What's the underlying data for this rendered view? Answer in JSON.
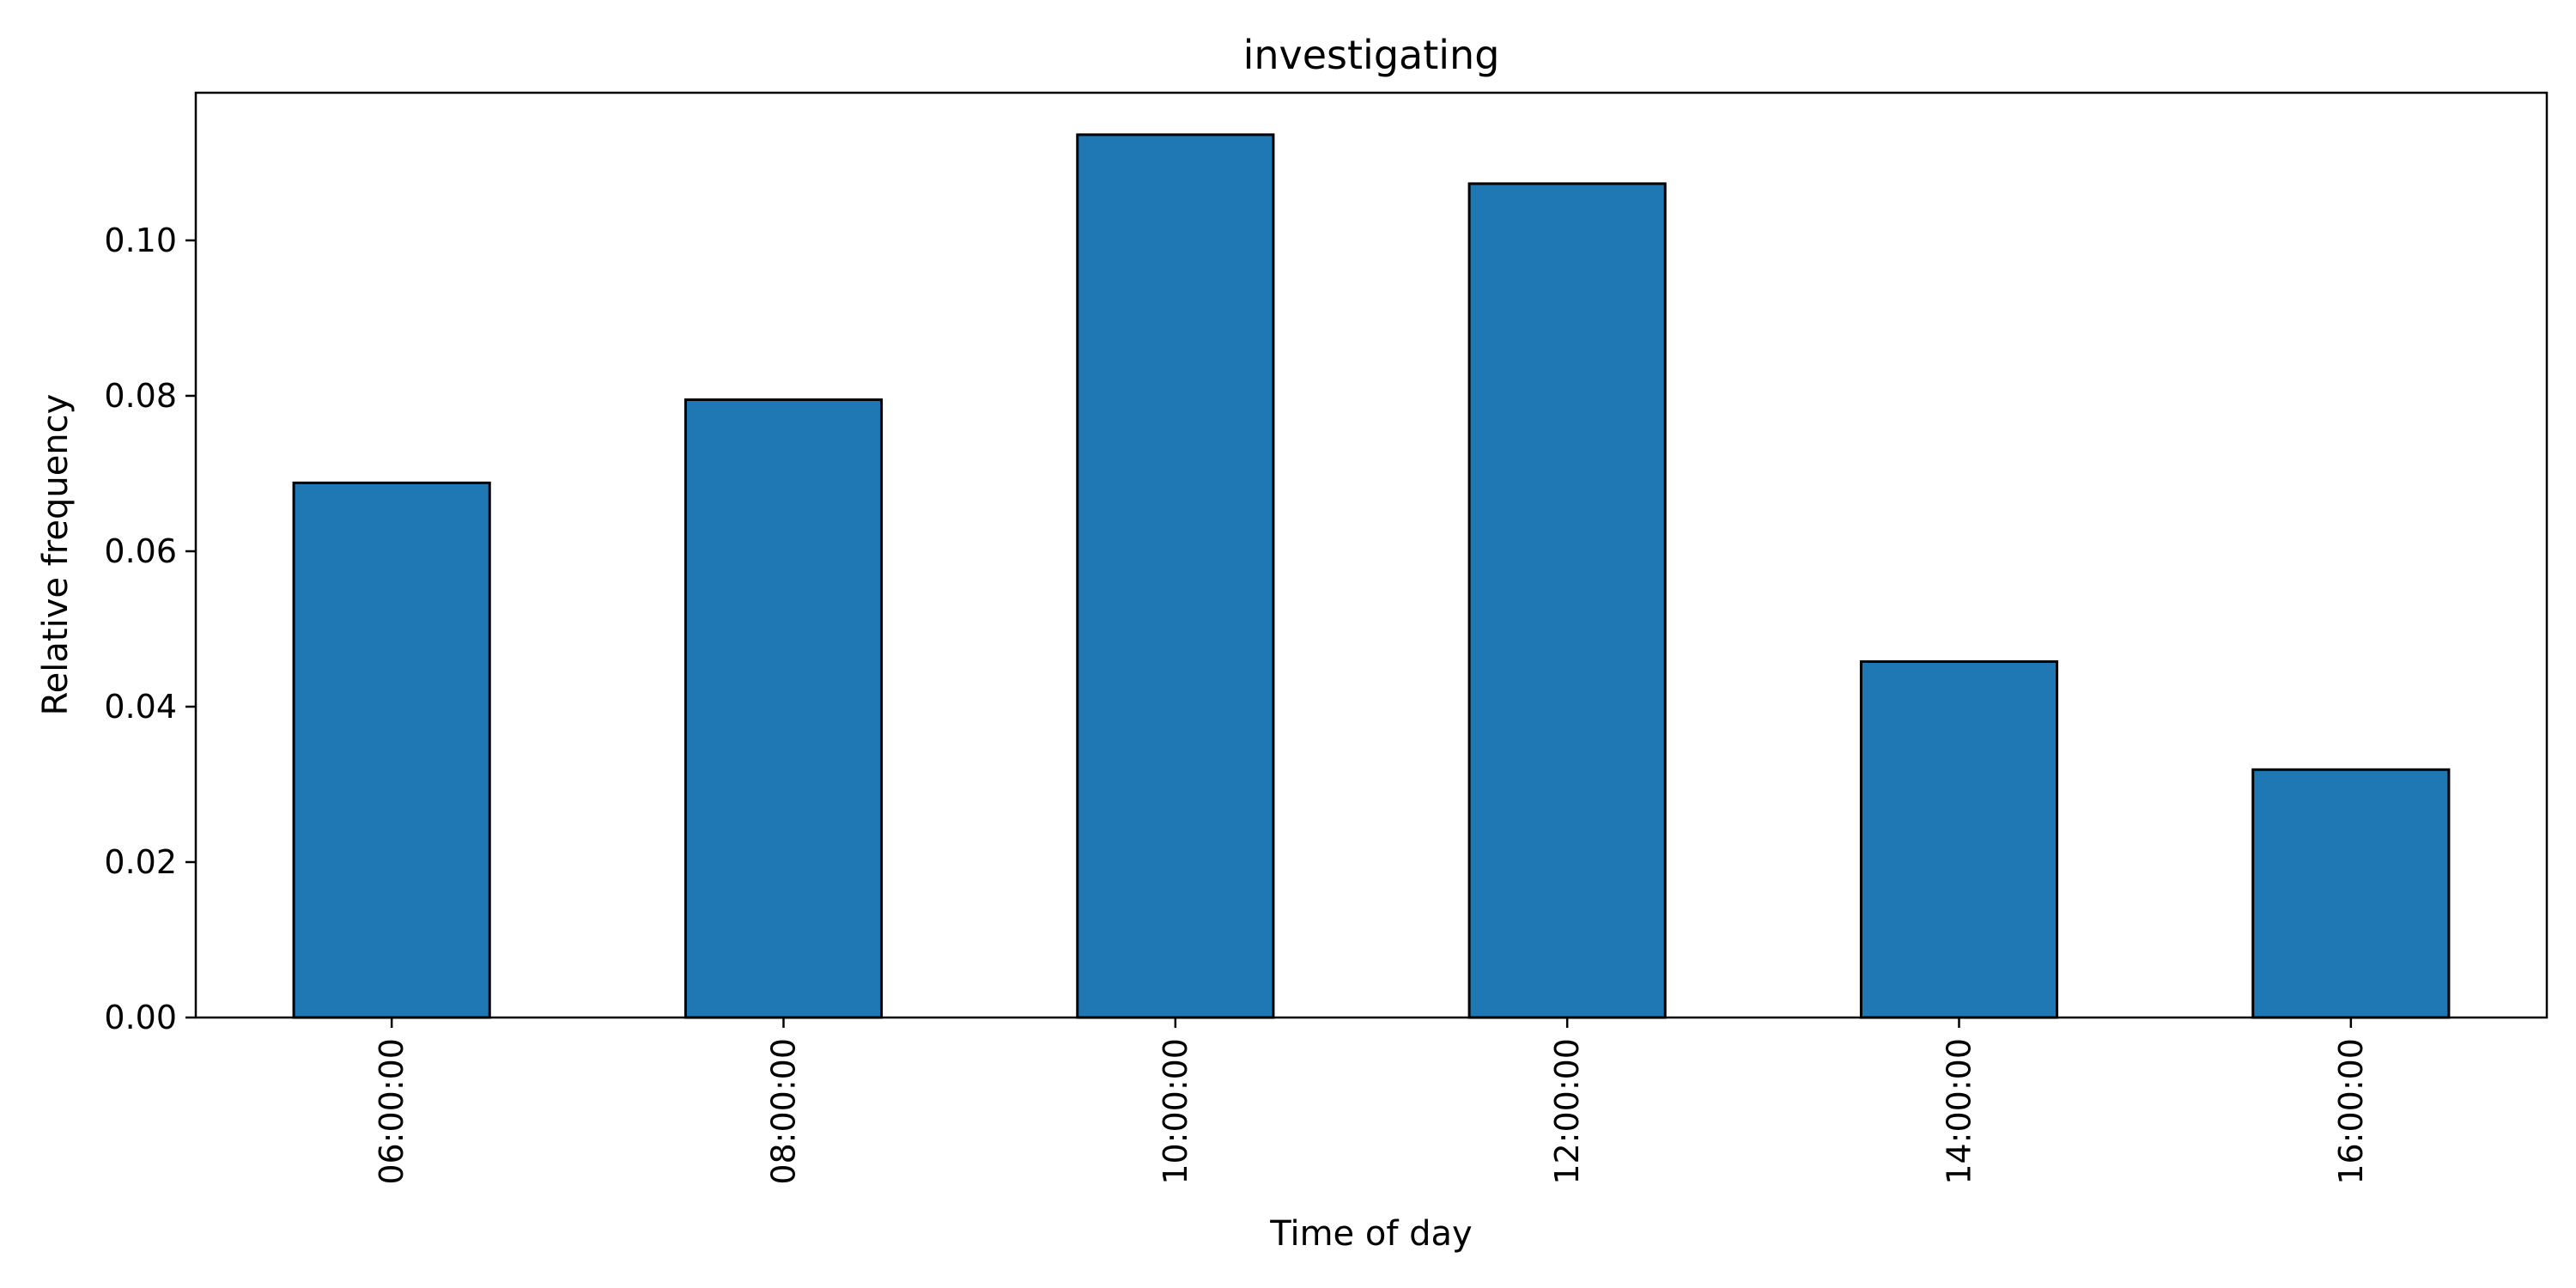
{
  "chart_data": {
    "type": "bar",
    "title": "investigating",
    "xlabel": "Time of day",
    "ylabel": "Relative frequency",
    "categories": [
      "06:00:00",
      "08:00:00",
      "10:00:00",
      "12:00:00",
      "14:00:00",
      "16:00:00"
    ],
    "values": [
      0.0688,
      0.0795,
      0.1136,
      0.1073,
      0.0458,
      0.0319
    ],
    "ylim": [
      0,
      0.119
    ],
    "yticks": [
      0.0,
      0.02,
      0.04,
      0.06,
      0.08,
      0.1
    ],
    "ytick_labels": [
      "0.00",
      "0.02",
      "0.04",
      "0.06",
      "0.08",
      "0.10"
    ],
    "grid": false,
    "legend": false,
    "bar_color": "#1f77b4",
    "edge_color": "#000000"
  }
}
